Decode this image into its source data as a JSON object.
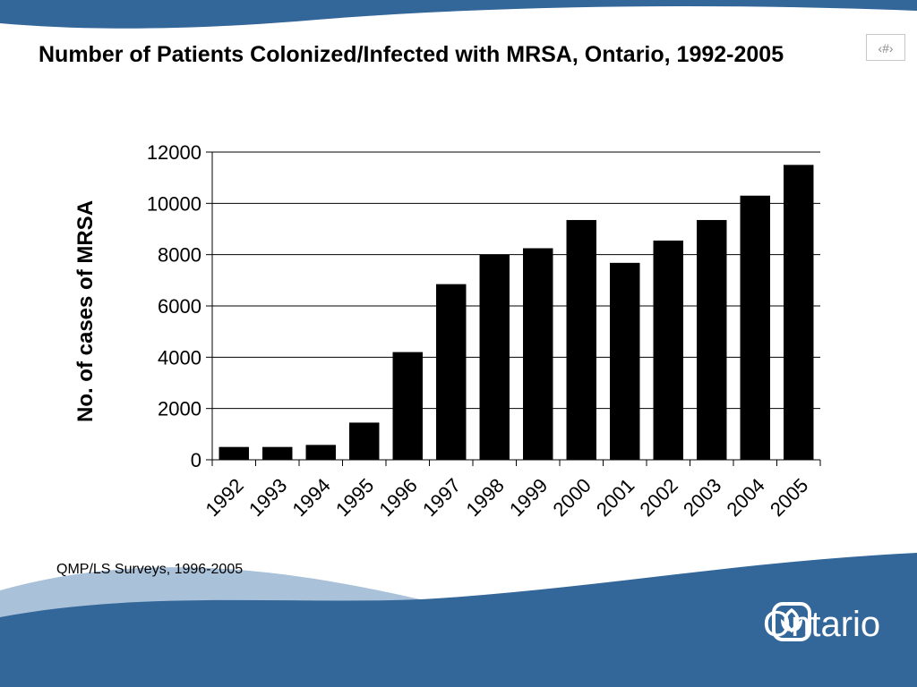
{
  "slide": {
    "title": "Number of Patients Colonized/Infected with MRSA, Ontario, 1992-2005",
    "slide_number": "‹#›",
    "source_note": "QMP/LS Surveys, 1996-2005",
    "brand": "Ontario",
    "colors": {
      "band": "#336699",
      "band_light": "#a9c1d9",
      "bar": "#000000"
    }
  },
  "chart_data": {
    "type": "bar",
    "title": "",
    "xlabel": "",
    "ylabel": "No. of cases of MRSA",
    "categories": [
      "1992",
      "1993",
      "1994",
      "1995",
      "1996",
      "1997",
      "1998",
      "1999",
      "2000",
      "2001",
      "2002",
      "2003",
      "2004",
      "2005"
    ],
    "values": [
      500,
      500,
      580,
      1450,
      4200,
      6850,
      8000,
      8250,
      9350,
      7680,
      8550,
      9350,
      10300,
      11500
    ],
    "ylim": [
      0,
      12000
    ],
    "yticks": [
      "0",
      "2000",
      "4000",
      "6000",
      "8000",
      "10000",
      "12000"
    ],
    "grid": true,
    "legend": "none",
    "bar_color": "#000000"
  }
}
